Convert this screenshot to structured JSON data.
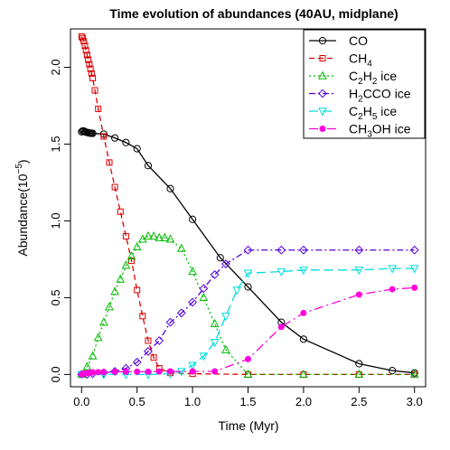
{
  "chart_data": {
    "type": "line",
    "title": "Time evolution of abundances (40AU, midplane)",
    "xlabel": "Time (Myr)",
    "ylabel": {
      "main": "Abundance(10",
      "sup": "−5",
      "end": ")"
    },
    "xlim": [
      -0.1,
      3.1
    ],
    "ylim": [
      -0.08,
      2.25
    ],
    "xticks": [
      0.0,
      0.5,
      1.0,
      1.5,
      2.0,
      2.5,
      3.0
    ],
    "xtick_labels": [
      "0.0",
      "0.5",
      "1.0",
      "1.5",
      "2.0",
      "2.5",
      "3.0"
    ],
    "yticks": [
      0.0,
      0.5,
      1.0,
      1.5,
      2.0
    ],
    "ytick_labels": [
      "0.0",
      "0.5",
      "1.0",
      "1.5",
      "2.0"
    ],
    "grid": false,
    "legend_position": "top-right",
    "series": [
      {
        "name": "CO",
        "label_parts": [
          [
            "CO",
            ""
          ]
        ],
        "color": "#000000",
        "dash": "",
        "marker": "circle-open",
        "x": [
          0.0,
          0.01,
          0.02,
          0.03,
          0.04,
          0.05,
          0.06,
          0.07,
          0.08,
          0.09,
          0.1,
          0.2,
          0.3,
          0.4,
          0.5,
          0.6,
          0.8,
          1.0,
          1.25,
          1.5,
          1.8,
          2.0,
          2.5,
          2.8,
          3.0
        ],
        "y": [
          1.58,
          1.585,
          1.585,
          1.58,
          1.578,
          1.576,
          1.574,
          1.572,
          1.571,
          1.57,
          1.57,
          1.565,
          1.54,
          1.51,
          1.47,
          1.36,
          1.21,
          1.01,
          0.76,
          0.57,
          0.34,
          0.23,
          0.07,
          0.025,
          0.01
        ]
      },
      {
        "name": "CH4",
        "label_parts": [
          [
            "CH",
            ""
          ],
          [
            "4",
            "sub"
          ]
        ],
        "color": "#dd0000",
        "dash": "6,4",
        "marker": "square-open",
        "x": [
          0.0,
          0.01,
          0.02,
          0.03,
          0.04,
          0.05,
          0.06,
          0.07,
          0.08,
          0.09,
          0.1,
          0.12,
          0.15,
          0.2,
          0.25,
          0.3,
          0.35,
          0.4,
          0.45,
          0.5,
          0.55,
          0.6,
          0.65,
          0.7,
          0.8,
          1.0,
          1.5,
          2.0,
          2.5,
          3.0
        ],
        "y": [
          2.2,
          2.19,
          2.17,
          2.14,
          2.11,
          2.08,
          2.05,
          2.02,
          1.99,
          1.96,
          1.93,
          1.85,
          1.73,
          1.55,
          1.38,
          1.22,
          1.06,
          0.9,
          0.74,
          0.55,
          0.38,
          0.22,
          0.11,
          0.04,
          0.01,
          0.005,
          0.0,
          0.0,
          0.0,
          0.0
        ]
      },
      {
        "name": "C2H2 ice",
        "label_parts": [
          [
            "C",
            ""
          ],
          [
            "2",
            "sub"
          ],
          [
            "H",
            ""
          ],
          [
            "2",
            "sub"
          ],
          [
            " ice",
            ""
          ]
        ],
        "color": "#00bb00",
        "dash": "2,3",
        "marker": "triangle-open",
        "x": [
          0.0,
          0.05,
          0.1,
          0.15,
          0.2,
          0.25,
          0.3,
          0.35,
          0.4,
          0.45,
          0.5,
          0.55,
          0.6,
          0.65,
          0.7,
          0.75,
          0.8,
          0.9,
          1.0,
          1.1,
          1.2,
          1.3,
          1.5,
          2.0,
          2.5,
          3.0
        ],
        "y": [
          0.0,
          0.05,
          0.12,
          0.24,
          0.34,
          0.44,
          0.54,
          0.62,
          0.71,
          0.77,
          0.83,
          0.88,
          0.9,
          0.9,
          0.89,
          0.89,
          0.88,
          0.82,
          0.67,
          0.5,
          0.33,
          0.16,
          0.0,
          0.0,
          0.0,
          0.0
        ]
      },
      {
        "name": "H2CCO ice",
        "label_parts": [
          [
            "H",
            ""
          ],
          [
            "2",
            "sub"
          ],
          [
            "CCO ice",
            ""
          ]
        ],
        "color": "#5500dd",
        "dash": "7,3,2,3",
        "marker": "diamond-open",
        "x": [
          0.0,
          0.05,
          0.1,
          0.2,
          0.3,
          0.4,
          0.5,
          0.6,
          0.7,
          0.8,
          0.9,
          1.0,
          1.1,
          1.2,
          1.3,
          1.5,
          1.8,
          2.0,
          2.5,
          3.0
        ],
        "y": [
          0.0,
          0.0,
          0.005,
          0.01,
          0.02,
          0.04,
          0.08,
          0.15,
          0.22,
          0.34,
          0.4,
          0.47,
          0.56,
          0.65,
          0.72,
          0.81,
          0.81,
          0.81,
          0.81,
          0.81
        ]
      },
      {
        "name": "C2H5 ice",
        "label_parts": [
          [
            "C",
            ""
          ],
          [
            "2",
            "sub"
          ],
          [
            "H",
            ""
          ],
          [
            "5",
            "sub"
          ],
          [
            " ice",
            ""
          ]
        ],
        "color": "#00dddd",
        "dash": "10,5",
        "marker": "triangle-down-open",
        "x": [
          0.0,
          0.2,
          0.4,
          0.6,
          0.8,
          0.9,
          1.0,
          1.1,
          1.2,
          1.3,
          1.4,
          1.5,
          1.8,
          2.0,
          2.5,
          2.8,
          3.0
        ],
        "y": [
          0.0,
          0.0,
          0.0,
          0.0,
          0.005,
          0.02,
          0.06,
          0.12,
          0.21,
          0.38,
          0.55,
          0.66,
          0.67,
          0.68,
          0.68,
          0.69,
          0.69
        ]
      },
      {
        "name": "CH3OH ice",
        "label_parts": [
          [
            "CH",
            ""
          ],
          [
            "3",
            "sub"
          ],
          [
            "OH ice",
            ""
          ]
        ],
        "color": "#ff00dd",
        "dash": "10,4,2,4",
        "marker": "circle-filled",
        "x": [
          0.0,
          0.02,
          0.04,
          0.06,
          0.08,
          0.1,
          0.15,
          0.2,
          0.3,
          0.4,
          0.5,
          0.6,
          0.7,
          0.8,
          1.0,
          1.2,
          1.5,
          1.8,
          2.0,
          2.5,
          2.8,
          3.0
        ],
        "y": [
          0.0,
          0.005,
          0.008,
          0.01,
          0.012,
          0.014,
          0.015,
          0.016,
          0.017,
          0.018,
          0.018,
          0.018,
          0.019,
          0.02,
          0.02,
          0.02,
          0.1,
          0.31,
          0.4,
          0.52,
          0.555,
          0.565
        ]
      }
    ]
  }
}
